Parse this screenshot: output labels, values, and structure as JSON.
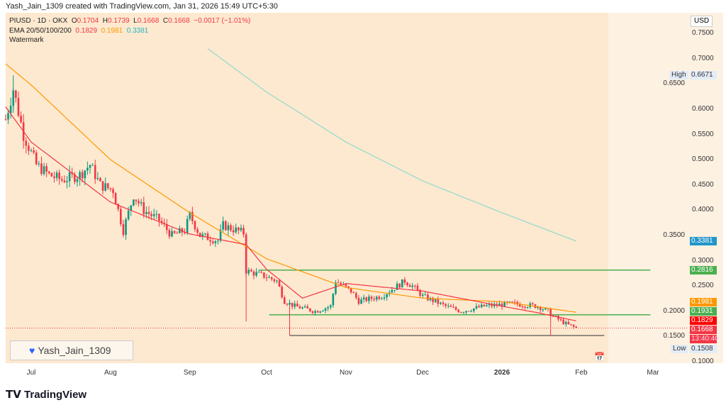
{
  "header": "Yash_Jain_1309 created with TradingView.com, Jan 31, 2026 15:49 UTC+5:30",
  "legend": {
    "symbol": "PIUSD · 1D · OKX",
    "o_label": "O",
    "o": "0.1704",
    "h_label": "H",
    "h": "0.1739",
    "l_label": "L",
    "l": "0.1668",
    "c_label": "C",
    "c": "0.1668",
    "change": "−0.0017 (−1.01%)",
    "ema_label": "EMA 20/50/100/200",
    "ema_a": "0.1829",
    "ema_b": "0.1981",
    "ema_c": "0.3381",
    "watermark": "Watermark"
  },
  "currency": "USD",
  "price_ticks": [
    "0.7500",
    "0.7000",
    "0.6500",
    "0.6000",
    "0.5500",
    "0.5000",
    "0.4500",
    "0.4000",
    "0.3500",
    "0.3000",
    "0.2500",
    "0.2000",
    "0.1500",
    "0.1000"
  ],
  "time_ticks": [
    {
      "label": "Jul",
      "date": "2025-07-01"
    },
    {
      "label": "Aug",
      "date": "2025-08-01"
    },
    {
      "label": "Sep",
      "date": "2025-09-01"
    },
    {
      "label": "Oct",
      "date": "2025-10-01"
    },
    {
      "label": "Nov",
      "date": "2025-11-01"
    },
    {
      "label": "Dec",
      "date": "2025-12-01"
    },
    {
      "label": "2026",
      "date": "2026-01-01"
    },
    {
      "label": "Feb",
      "date": "2026-02-01"
    },
    {
      "label": "Mar",
      "date": "2026-03-01"
    }
  ],
  "tags": {
    "high_label": "High",
    "high": "0.6671",
    "low_label": "Low",
    "low": "0.1508",
    "ema200": "0.3381",
    "level_top": "0.2816",
    "ema100": "0.1981",
    "level_mid": "0.1931",
    "ema20": "0.1829",
    "last": "0.1668",
    "countdown": "13:40:40"
  },
  "colors": {
    "up": "#089981",
    "down": "#f23645",
    "ema_fast": "#f23645",
    "ema_mid": "#ff9800",
    "ema_slow": "#8fd9d0",
    "level": "#4caf50",
    "bg": "#fde9cf",
    "bg_future": "#fdf1e2"
  },
  "horizontal_levels": [
    {
      "price": 0.2816,
      "from": "2025-09-28",
      "to": "2026-02-28"
    },
    {
      "price": 0.1931,
      "from": "2025-10-02",
      "to": "2026-02-28"
    },
    {
      "price": 0.152,
      "from": "2025-10-10",
      "to": "2026-02-10"
    }
  ],
  "watermark_box": "Yash_Jain_1309",
  "brand": "TradingView",
  "price_path": [
    [
      "2025-06-21",
      0.58
    ],
    [
      "2025-06-24",
      0.64
    ],
    [
      "2025-06-28",
      0.55
    ],
    [
      "2025-07-03",
      0.49
    ],
    [
      "2025-07-08",
      0.47
    ],
    [
      "2025-07-13",
      0.46
    ],
    [
      "2025-07-20",
      0.47
    ],
    [
      "2025-07-24",
      0.49
    ],
    [
      "2025-07-28",
      0.45
    ],
    [
      "2025-08-02",
      0.44
    ],
    [
      "2025-08-06",
      0.36
    ],
    [
      "2025-08-10",
      0.43
    ],
    [
      "2025-08-14",
      0.4
    ],
    [
      "2025-08-20",
      0.38
    ],
    [
      "2025-08-25",
      0.35
    ],
    [
      "2025-08-30",
      0.36
    ],
    [
      "2025-09-01",
      0.39
    ],
    [
      "2025-09-05",
      0.35
    ],
    [
      "2025-09-12",
      0.34
    ],
    [
      "2025-09-14",
      0.37
    ],
    [
      "2025-09-22",
      0.355
    ],
    [
      "2025-09-23",
      0.28
    ],
    [
      "2025-09-30",
      0.27
    ],
    [
      "2025-10-05",
      0.26
    ],
    [
      "2025-10-08",
      0.22
    ],
    [
      "2025-10-12",
      0.21
    ],
    [
      "2025-10-20",
      0.2
    ],
    [
      "2025-10-26",
      0.21
    ],
    [
      "2025-10-28",
      0.26
    ],
    [
      "2025-11-03",
      0.24
    ],
    [
      "2025-11-06",
      0.22
    ],
    [
      "2025-11-15",
      0.23
    ],
    [
      "2025-11-24",
      0.26
    ],
    [
      "2025-11-27",
      0.25
    ],
    [
      "2025-12-01",
      0.23
    ],
    [
      "2025-12-10",
      0.21
    ],
    [
      "2025-12-16",
      0.2
    ],
    [
      "2025-12-25",
      0.21
    ],
    [
      "2026-01-05",
      0.215
    ],
    [
      "2026-01-15",
      0.21
    ],
    [
      "2026-01-19",
      0.2
    ],
    [
      "2026-01-21",
      0.19
    ],
    [
      "2026-01-26",
      0.175
    ],
    [
      "2026-01-30",
      0.1668
    ]
  ],
  "ema_fast_path": [
    [
      "2025-06-21",
      0.605
    ],
    [
      "2025-07-01",
      0.535
    ],
    [
      "2025-08-01",
      0.416
    ],
    [
      "2025-09-01",
      0.353
    ],
    [
      "2025-09-23",
      0.332
    ],
    [
      "2025-10-01",
      0.283
    ],
    [
      "2025-10-15",
      0.226
    ],
    [
      "2025-11-01",
      0.255
    ],
    [
      "2025-12-01",
      0.24
    ],
    [
      "2026-01-01",
      0.21
    ],
    [
      "2026-01-14",
      0.198
    ],
    [
      "2026-01-30",
      0.181
    ]
  ],
  "ema_mid_path": [
    [
      "2025-06-21",
      0.69
    ],
    [
      "2025-07-01",
      0.648
    ],
    [
      "2025-08-01",
      0.5
    ],
    [
      "2025-09-01",
      0.395
    ],
    [
      "2025-10-01",
      0.304
    ],
    [
      "2025-11-01",
      0.247
    ],
    [
      "2025-12-01",
      0.226
    ],
    [
      "2026-01-01",
      0.219
    ],
    [
      "2026-01-30",
      0.198
    ]
  ],
  "ema_slow_path": [
    [
      "2025-09-08",
      0.72
    ],
    [
      "2025-10-01",
      0.634
    ],
    [
      "2025-11-01",
      0.535
    ],
    [
      "2025-12-01",
      0.458
    ],
    [
      "2026-01-01",
      0.395
    ],
    [
      "2026-01-30",
      0.339
    ]
  ]
}
